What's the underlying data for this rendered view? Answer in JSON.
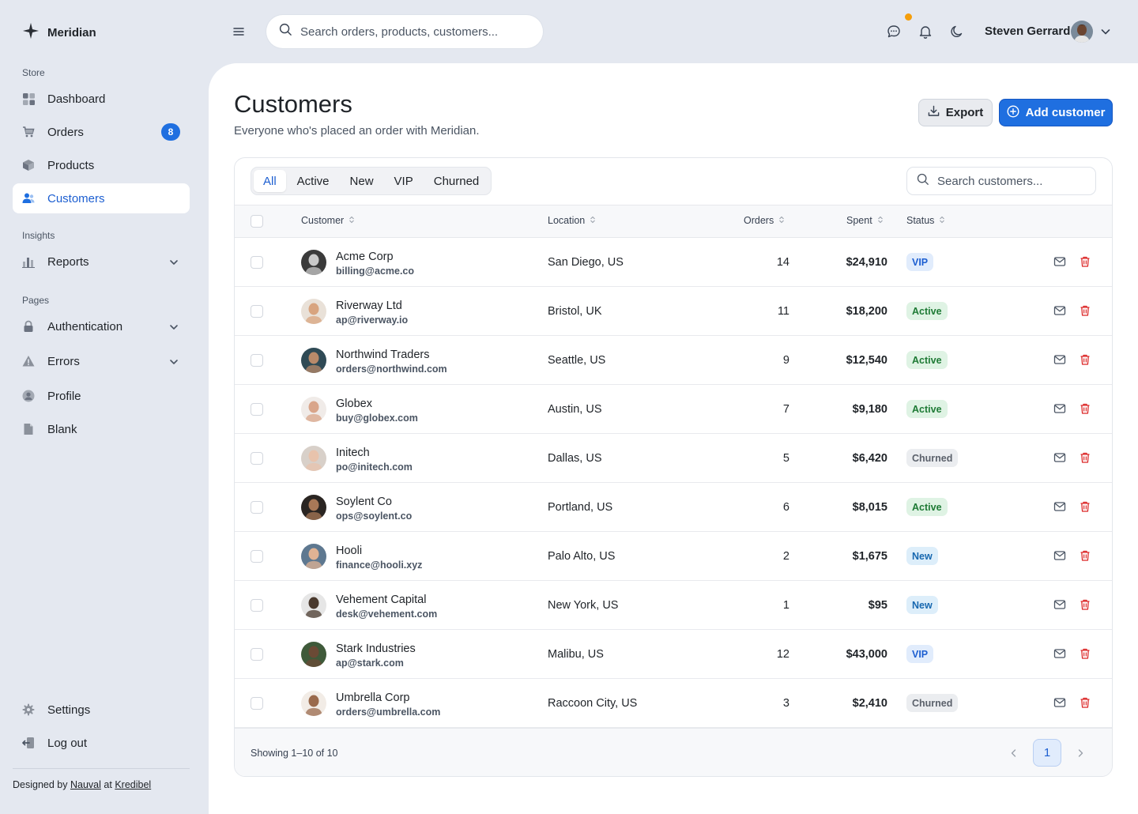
{
  "app": {
    "brand": "Meridian",
    "accent_color": "#1f6fe0",
    "notification_dot_color": "#f59e0b"
  },
  "sidebar": {
    "store_label": "Store",
    "insights_label": "Insights",
    "pages_label": "Pages",
    "items": [
      {
        "label": "Dashboard",
        "icon": "grid-icon"
      },
      {
        "label": "Orders",
        "icon": "cart-icon",
        "badge": "8"
      },
      {
        "label": "Products",
        "icon": "box-icon"
      },
      {
        "label": "Customers",
        "icon": "users-icon",
        "active": true
      },
      {
        "label": "Reports",
        "icon": "bar-chart-icon",
        "expandable": true
      },
      {
        "label": "Authentication",
        "icon": "lock-icon",
        "expandable": true
      },
      {
        "label": "Errors",
        "icon": "warning-icon",
        "expandable": true
      },
      {
        "label": "Profile",
        "icon": "user-circle-icon"
      },
      {
        "label": "Blank",
        "icon": "file-icon"
      },
      {
        "label": "Settings",
        "icon": "gear-icon"
      },
      {
        "label": "Log out",
        "icon": "logout-icon"
      }
    ],
    "credit": {
      "prefix": "Designed by",
      "author": "Nauval",
      "middle": "at",
      "company": "Kredibel"
    }
  },
  "topbar": {
    "search_placeholder": "Search orders, products, customers...",
    "user_name": "Steven Gerrard",
    "icons": [
      "menu-icon",
      "search-icon",
      "chat-icon",
      "bell-icon",
      "moon-icon",
      "chevron-down-icon"
    ]
  },
  "page": {
    "title": "Customers",
    "subtitle": "Everyone who's placed an order with Meridian.",
    "export_label": "Export",
    "add_label": "Add customer"
  },
  "filters": {
    "tabs": [
      "All",
      "Active",
      "New",
      "VIP",
      "Churned"
    ],
    "active_tab": "All",
    "search_placeholder": "Search customers..."
  },
  "table": {
    "columns": {
      "customer": "Customer",
      "location": "Location",
      "orders": "Orders",
      "spent": "Spent",
      "status": "Status"
    },
    "rows": [
      {
        "name": "Acme Corp",
        "email": "billing@acme.co",
        "location": "San Diego, US",
        "orders": "14",
        "spent": "$24,910",
        "status": "VIP",
        "status_class": "vip",
        "avatar_bg": "#3a3a3a",
        "avatar_skin": "#c9c9c9"
      },
      {
        "name": "Riverway Ltd",
        "email": "ap@riverway.io",
        "location": "Bristol, UK",
        "orders": "11",
        "spent": "$18,200",
        "status": "Active",
        "status_class": "active",
        "avatar_bg": "#e9e1d8",
        "avatar_skin": "#d8a47f"
      },
      {
        "name": "Northwind Traders",
        "email": "orders@northwind.com",
        "location": "Seattle, US",
        "orders": "9",
        "spent": "$12,540",
        "status": "Active",
        "status_class": "active",
        "avatar_bg": "#2f4a55",
        "avatar_skin": "#b98a6a"
      },
      {
        "name": "Globex",
        "email": "buy@globex.com",
        "location": "Austin, US",
        "orders": "7",
        "spent": "$9,180",
        "status": "Active",
        "status_class": "active",
        "avatar_bg": "#f0ebe8",
        "avatar_skin": "#d9a58a"
      },
      {
        "name": "Initech",
        "email": "po@initech.com",
        "location": "Dallas, US",
        "orders": "5",
        "spent": "$6,420",
        "status": "Churned",
        "status_class": "churned",
        "avatar_bg": "#d8d0c9",
        "avatar_skin": "#e8c3ac"
      },
      {
        "name": "Soylent Co",
        "email": "ops@soylent.co",
        "location": "Portland, US",
        "orders": "6",
        "spent": "$8,015",
        "status": "Active",
        "status_class": "active",
        "avatar_bg": "#2a2522",
        "avatar_skin": "#a87857"
      },
      {
        "name": "Hooli",
        "email": "finance@hooli.xyz",
        "location": "Palo Alto, US",
        "orders": "2",
        "spent": "$1,675",
        "status": "New",
        "status_class": "new",
        "avatar_bg": "#5e7890",
        "avatar_skin": "#e0b394"
      },
      {
        "name": "Vehement Capital",
        "email": "desk@vehement.com",
        "location": "New York, US",
        "orders": "1",
        "spent": "$95",
        "status": "New",
        "status_class": "new",
        "avatar_bg": "#e6e6e6",
        "avatar_skin": "#4a3a2e"
      },
      {
        "name": "Stark Industries",
        "email": "ap@stark.com",
        "location": "Malibu, US",
        "orders": "12",
        "spent": "$43,000",
        "status": "VIP",
        "status_class": "vip",
        "avatar_bg": "#3f5a3a",
        "avatar_skin": "#6b4a35"
      },
      {
        "name": "Umbrella Corp",
        "email": "orders@umbrella.com",
        "location": "Raccoon City, US",
        "orders": "3",
        "spent": "$2,410",
        "status": "Churned",
        "status_class": "churned",
        "avatar_bg": "#f2ece6",
        "avatar_skin": "#9a6a4c"
      }
    ]
  },
  "pagination": {
    "showing": "Showing 1–10 of 10",
    "current_page": "1"
  }
}
